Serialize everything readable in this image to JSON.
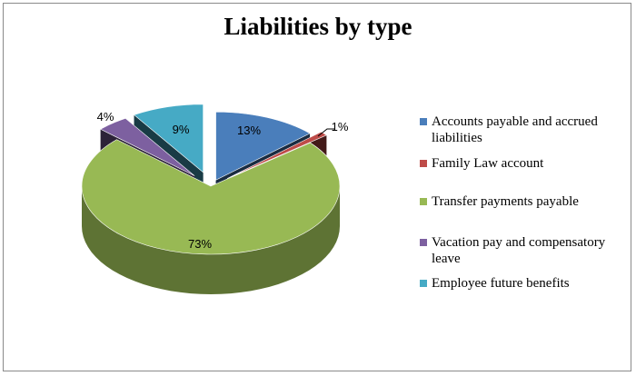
{
  "chart_data": {
    "type": "pie",
    "title": "Liabilities by type",
    "slices": [
      {
        "label": "Accounts payable and accrued liabilities",
        "value": 13,
        "display": "13%",
        "color": "#4a7ebb"
      },
      {
        "label": "Family Law account",
        "value": 1,
        "display": "1%",
        "color": "#be4b48"
      },
      {
        "label": "Transfer payments payable",
        "value": 73,
        "display": "73%",
        "color": "#98b954"
      },
      {
        "label": "Vacation pay and compensatory leave",
        "value": 4,
        "display": "4%",
        "color": "#7d60a0"
      },
      {
        "label": "Employee future benefits",
        "value": 9,
        "display": "9%",
        "color": "#46aac5"
      }
    ],
    "legend_position": "right",
    "style": "3d-exploded-pie"
  }
}
